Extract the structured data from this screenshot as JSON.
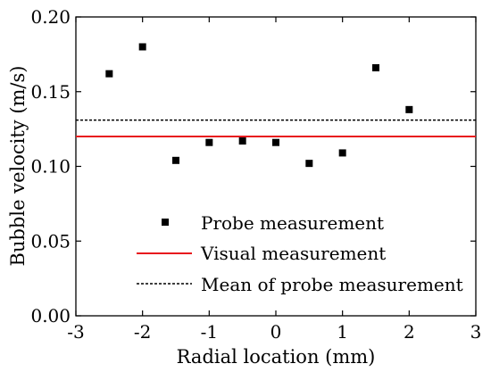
{
  "chart_data": {
    "type": "scatter",
    "title": "",
    "xlabel": "Radial location (mm)",
    "ylabel": "Bubble velocity (m/s)",
    "xlim": [
      -3,
      3
    ],
    "ylim": [
      0,
      0.2
    ],
    "xticks": [
      "-3",
      "-2",
      "-1",
      "0",
      "1",
      "2",
      "3"
    ],
    "yticks": [
      "0.00",
      "0.05",
      "0.10",
      "0.15",
      "0.20"
    ],
    "grid": false,
    "legend_position": "bottom-center",
    "series": [
      {
        "name": "Probe measurement",
        "kind": "scatter",
        "marker": "square",
        "color": "#000000",
        "x": [
          -2.5,
          -2.0,
          -1.5,
          -1.0,
          -0.5,
          0.0,
          0.5,
          1.0,
          1.5,
          2.0
        ],
        "y": [
          0.162,
          0.18,
          0.104,
          0.116,
          0.117,
          0.116,
          0.102,
          0.109,
          0.166,
          0.138
        ]
      },
      {
        "name": "Visual measurement",
        "kind": "hline",
        "color": "#e8191d",
        "y": 0.12
      },
      {
        "name": "Mean of probe measurement",
        "kind": "hline-dashed",
        "color": "#000000",
        "y": 0.131
      }
    ]
  }
}
